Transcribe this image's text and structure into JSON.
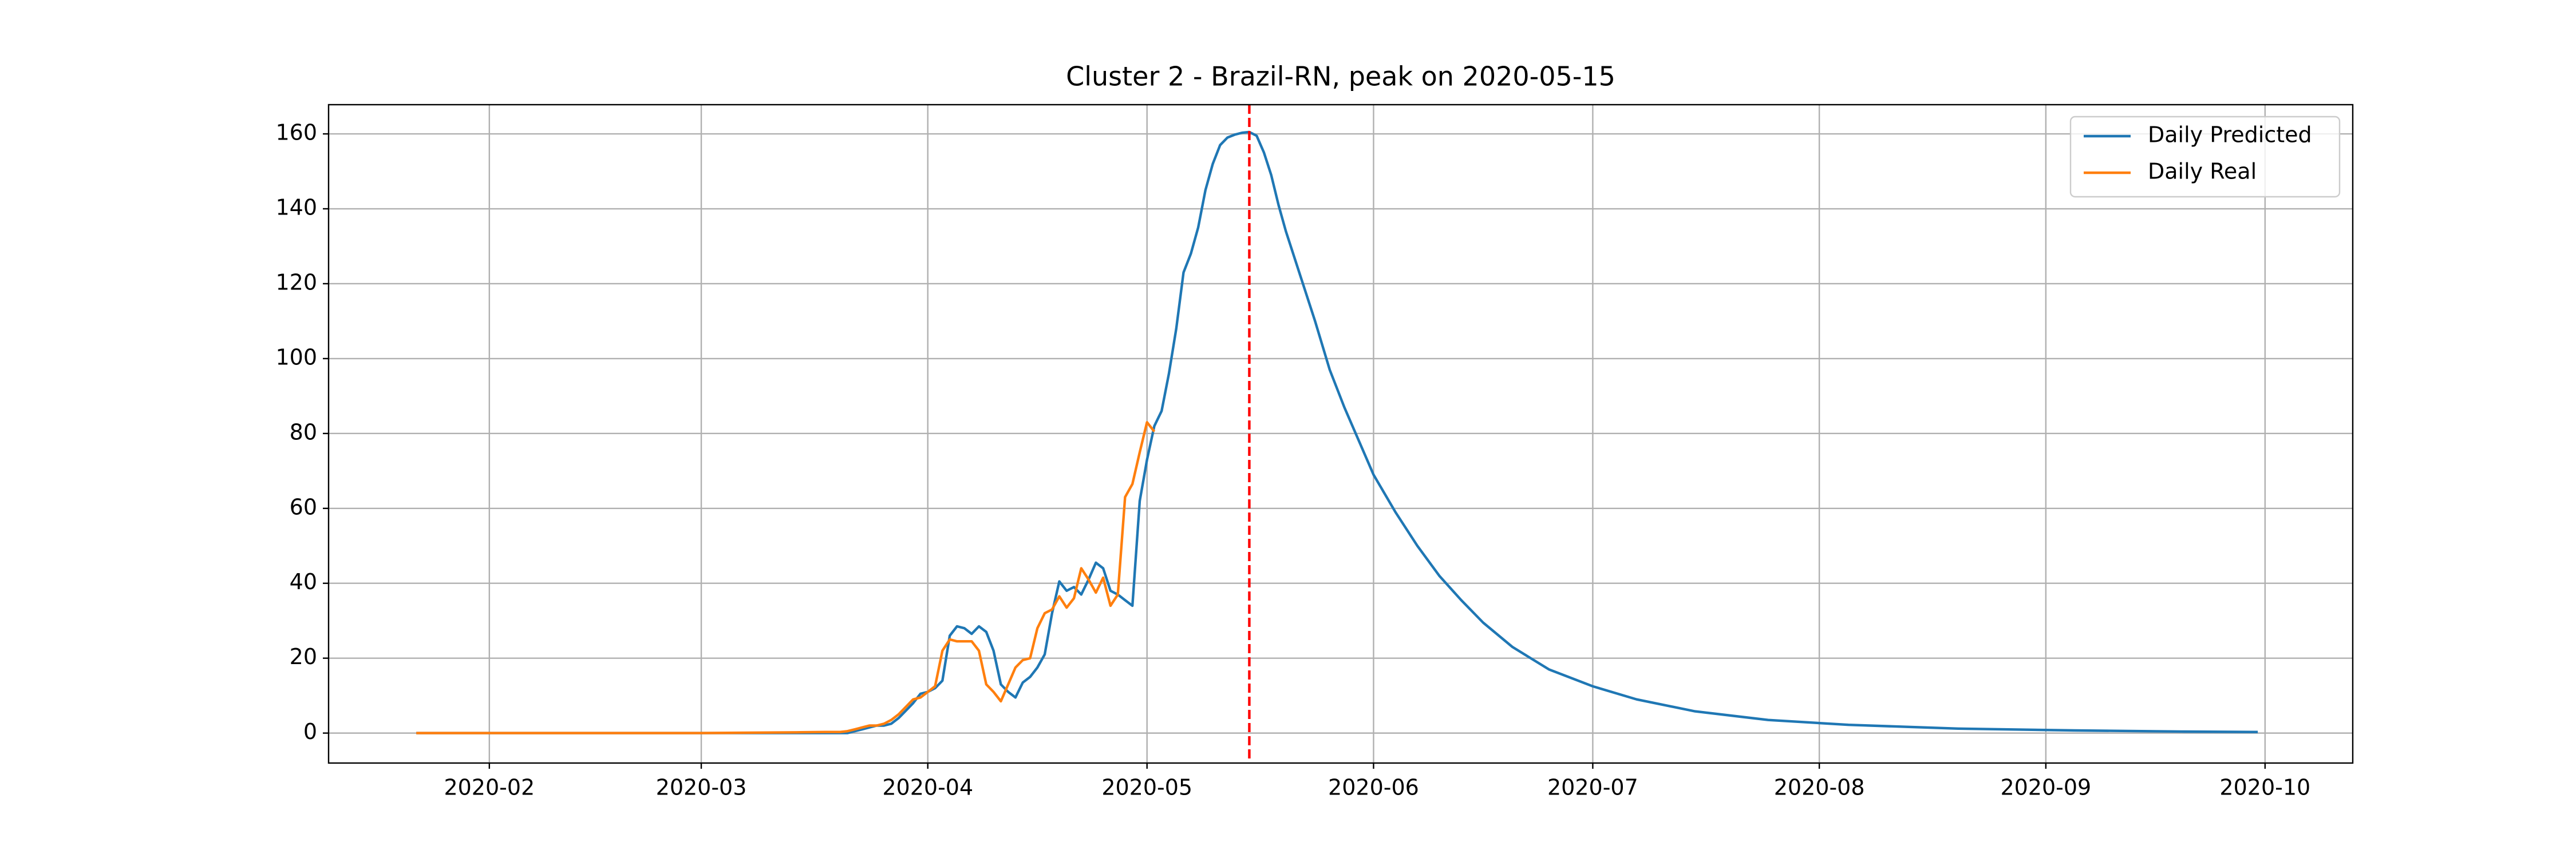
{
  "chart_data": {
    "type": "line",
    "title": "Cluster 2 - Brazil-RN, peak on 2020-05-15",
    "x": [
      "2020-01-22",
      "2020-02-01",
      "2020-02-15",
      "2020-03-01",
      "2020-03-14",
      "2020-03-18",
      "2020-03-20",
      "2020-03-21",
      "2020-03-22",
      "2020-03-23",
      "2020-03-24",
      "2020-03-25",
      "2020-03-26",
      "2020-03-27",
      "2020-03-28",
      "2020-03-29",
      "2020-03-30",
      "2020-03-31",
      "2020-04-01",
      "2020-04-02",
      "2020-04-03",
      "2020-04-04",
      "2020-04-05",
      "2020-04-06",
      "2020-04-07",
      "2020-04-08",
      "2020-04-09",
      "2020-04-10",
      "2020-04-11",
      "2020-04-12",
      "2020-04-13",
      "2020-04-14",
      "2020-04-15",
      "2020-04-16",
      "2020-04-17",
      "2020-04-18",
      "2020-04-19",
      "2020-04-20",
      "2020-04-21",
      "2020-04-22",
      "2020-04-23",
      "2020-04-24",
      "2020-04-25",
      "2020-04-26",
      "2020-04-27",
      "2020-04-28",
      "2020-04-29",
      "2020-04-30",
      "2020-05-01",
      "2020-05-02",
      "2020-05-03",
      "2020-05-04",
      "2020-05-05",
      "2020-05-06",
      "2020-05-07",
      "2020-05-08",
      "2020-05-09",
      "2020-05-10",
      "2020-05-11",
      "2020-05-12",
      "2020-05-13",
      "2020-05-14",
      "2020-05-15",
      "2020-05-16",
      "2020-05-17",
      "2020-05-18",
      "2020-05-19",
      "2020-05-20",
      "2020-05-22",
      "2020-05-24",
      "2020-05-26",
      "2020-05-28",
      "2020-05-30",
      "2020-06-01",
      "2020-06-04",
      "2020-06-07",
      "2020-06-10",
      "2020-06-13",
      "2020-06-16",
      "2020-06-20",
      "2020-06-25",
      "2020-07-01",
      "2020-07-07",
      "2020-07-15",
      "2020-07-25",
      "2020-08-05",
      "2020-08-20",
      "2020-09-05",
      "2020-09-20",
      "2020-09-30"
    ],
    "series": [
      {
        "name": "Daily Predicted",
        "color": "#1f77b4",
        "values": [
          0,
          0,
          0,
          0,
          0,
          0,
          0,
          0,
          0.5,
          1,
          1.5,
          2,
          2,
          2.5,
          4,
          6,
          8,
          10.5,
          11,
          12,
          14,
          26,
          28.5,
          28,
          26.5,
          28.5,
          27,
          22,
          13,
          11,
          9.5,
          13.5,
          15,
          17.5,
          21,
          32,
          40.5,
          38,
          39,
          37,
          41,
          45.5,
          44,
          38,
          37,
          35.5,
          34,
          62,
          73,
          82,
          86,
          96,
          108,
          123,
          128,
          135,
          145,
          152,
          157,
          159,
          159.8,
          160.3,
          160.5,
          159.5,
          155,
          149,
          141,
          134,
          122,
          110,
          97,
          87,
          78,
          69,
          59,
          50,
          42,
          35.5,
          29.5,
          23,
          17,
          12.5,
          9,
          5.8,
          3.5,
          2.2,
          1.2,
          0.7,
          0.4,
          0.3
        ]
      },
      {
        "name": "Daily Real",
        "color": "#ff7f0e",
        "values": [
          0,
          0,
          0,
          0,
          0.2,
          0.3,
          0.3,
          0.5,
          1,
          1.5,
          2,
          2,
          2.5,
          3.5,
          5,
          7,
          9,
          9.5,
          11,
          12.5,
          22,
          25,
          24.5,
          24.5,
          24.5,
          22,
          13,
          11,
          8.5,
          13,
          17.5,
          19.5,
          20,
          28,
          32,
          33,
          36.5,
          33.5,
          36,
          44,
          41,
          37.5,
          41.5,
          34,
          37,
          63,
          66.5,
          75,
          83,
          80.5,
          null,
          null,
          null,
          null,
          null,
          null,
          null,
          null,
          null,
          null,
          null,
          null,
          null,
          null,
          null,
          null,
          null,
          null,
          null,
          null,
          null,
          null,
          null,
          null,
          null,
          null,
          null,
          null,
          null,
          null,
          null,
          null,
          null,
          null,
          null,
          null,
          null,
          null,
          null,
          null
        ]
      }
    ],
    "vline": {
      "x": "2020-05-15",
      "color": "#ff0000"
    },
    "xlim": [
      "2020-01-10",
      "2020-10-13"
    ],
    "xticks": [
      {
        "value": "2020-02-01",
        "label": "2020-02"
      },
      {
        "value": "2020-03-01",
        "label": "2020-03"
      },
      {
        "value": "2020-04-01",
        "label": "2020-04"
      },
      {
        "value": "2020-05-01",
        "label": "2020-05"
      },
      {
        "value": "2020-06-01",
        "label": "2020-06"
      },
      {
        "value": "2020-07-01",
        "label": "2020-07"
      },
      {
        "value": "2020-08-01",
        "label": "2020-08"
      },
      {
        "value": "2020-09-01",
        "label": "2020-09"
      },
      {
        "value": "2020-10-01",
        "label": "2020-10"
      }
    ],
    "ylim": [
      -8,
      167.8
    ],
    "yticks": [
      0,
      20,
      40,
      60,
      80,
      100,
      120,
      140,
      160
    ],
    "grid": true,
    "legend": "upper right"
  }
}
